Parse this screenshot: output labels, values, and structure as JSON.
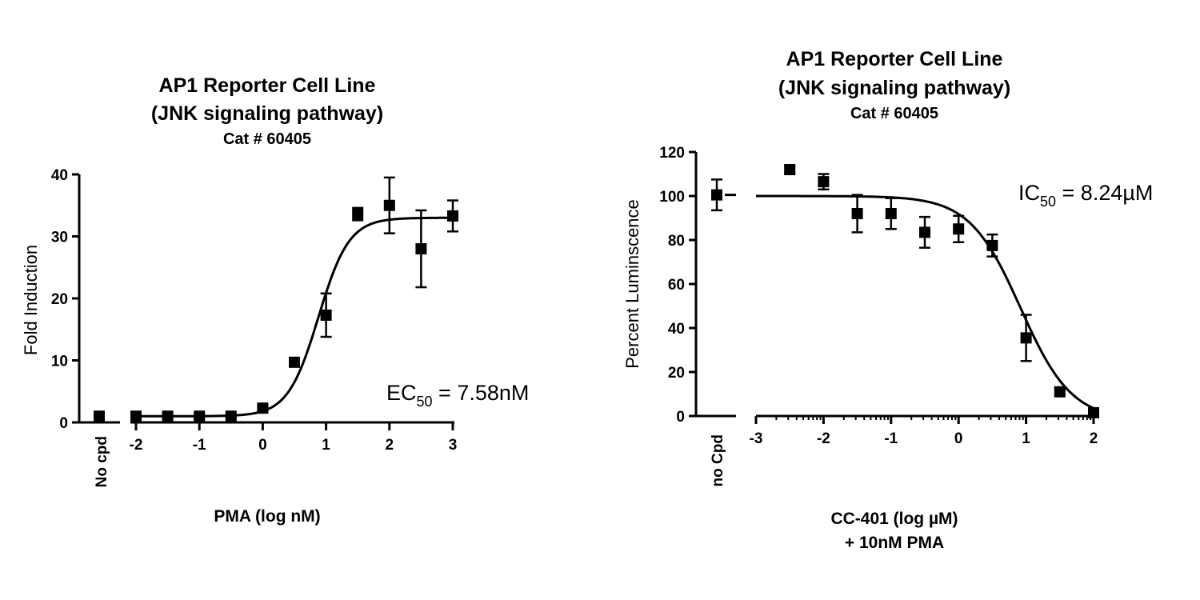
{
  "chart_data": [
    {
      "type": "scatter",
      "title_line1": "AP1 Reporter Cell Line",
      "title_line2": "(JNK signaling pathway)",
      "subtitle": "Cat # 60405",
      "xlabel": "PMA (log nM)",
      "xlabel_line2": "",
      "ylabel": "Fold Induction",
      "xlim": [
        -2,
        3
      ],
      "ylim": [
        0,
        40
      ],
      "xticks": [
        "-2",
        "-1",
        "0",
        "1",
        "2",
        "3"
      ],
      "yticks": [
        "0",
        "10",
        "20",
        "30",
        "40"
      ],
      "control_label": "No cpd",
      "control": {
        "y": 1.0,
        "err": 0.3
      },
      "points": [
        {
          "x": -2.0,
          "y": 1.0,
          "err": 0.3
        },
        {
          "x": -1.5,
          "y": 1.0,
          "err": 0.3
        },
        {
          "x": -1.0,
          "y": 1.0,
          "err": 0.3
        },
        {
          "x": -0.5,
          "y": 1.0,
          "err": 0.3
        },
        {
          "x": 0.0,
          "y": 2.3,
          "err": 0.4
        },
        {
          "x": 0.5,
          "y": 9.7,
          "err": 0.5
        },
        {
          "x": 1.0,
          "y": 17.3,
          "err": 3.5
        },
        {
          "x": 1.5,
          "y": 33.6,
          "err": 1.0
        },
        {
          "x": 2.0,
          "y": 35.0,
          "err": 4.5
        },
        {
          "x": 2.5,
          "y": 28.0,
          "err": 6.2
        },
        {
          "x": 3.0,
          "y": 33.3,
          "err": 2.5
        }
      ],
      "fit": {
        "bottom": 1.0,
        "top": 33.0,
        "logEC50": 0.88,
        "hill": 1.8
      },
      "annotation": {
        "prefix": "EC",
        "sub": "50",
        "suffix": " = 7.58nM"
      }
    },
    {
      "type": "scatter",
      "title_line1": "AP1 Reporter Cell Line",
      "title_line2": "(JNK signaling pathway)",
      "subtitle": "Cat # 60405",
      "xlabel": "CC-401 (log µM)",
      "xlabel_line2": "+ 10nM PMA",
      "ylabel": "Percent Luminscence",
      "xlim": [
        -3,
        2
      ],
      "ylim": [
        0,
        120
      ],
      "xticks": [
        "-3",
        "-2",
        "-1",
        "0",
        "1",
        "2"
      ],
      "yticks": [
        "0",
        "20",
        "40",
        "60",
        "80",
        "100",
        "120"
      ],
      "control_label": "no Cpd",
      "control": {
        "y": 100.5,
        "err": 7.0
      },
      "points": [
        {
          "x": -2.5,
          "y": 112.0,
          "err": 1.5
        },
        {
          "x": -2.0,
          "y": 106.5,
          "err": 3.5
        },
        {
          "x": -1.5,
          "y": 92.0,
          "err": 8.5
        },
        {
          "x": -1.0,
          "y": 92.0,
          "err": 7.0
        },
        {
          "x": -0.5,
          "y": 83.5,
          "err": 7.0
        },
        {
          "x": 0.0,
          "y": 85.0,
          "err": 6.0
        },
        {
          "x": 0.5,
          "y": 77.5,
          "err": 5.0
        },
        {
          "x": 1.0,
          "y": 35.5,
          "err": 10.5
        },
        {
          "x": 1.5,
          "y": 11.0,
          "err": 1.5
        },
        {
          "x": 2.0,
          "y": 1.5,
          "err": 1.0
        }
      ],
      "fit": {
        "bottom": -2.0,
        "top": 100.0,
        "logEC50": 0.92,
        "hill": -1.15
      },
      "annotation": {
        "prefix": "IC",
        "sub": "50",
        "suffix": " = 8.24µM"
      }
    }
  ]
}
